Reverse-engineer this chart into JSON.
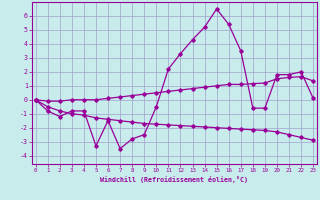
{
  "xlabel": "Windchill (Refroidissement éolien,°C)",
  "background_color": "#c8ecec",
  "grid_color": "#a0a0cc",
  "line_color": "#990099",
  "x_ticks": [
    0,
    1,
    2,
    3,
    4,
    5,
    6,
    7,
    8,
    9,
    10,
    11,
    12,
    13,
    14,
    15,
    16,
    17,
    18,
    19,
    20,
    21,
    22,
    23
  ],
  "y_ticks": [
    -4,
    -3,
    -2,
    -1,
    0,
    1,
    2,
    3,
    4,
    5,
    6
  ],
  "xlim": [
    -0.3,
    23.3
  ],
  "ylim": [
    -4.6,
    7.0
  ],
  "line1_x": [
    0,
    1,
    2,
    3,
    4,
    5,
    6,
    7,
    8,
    9,
    10,
    11,
    12,
    13,
    14,
    15,
    16,
    17,
    18,
    19,
    20,
    21,
    22,
    23
  ],
  "line1_y": [
    0.0,
    -0.8,
    -1.2,
    -0.8,
    -0.8,
    -3.3,
    -1.5,
    -3.5,
    -2.8,
    -2.5,
    -0.5,
    2.2,
    3.3,
    4.3,
    5.2,
    6.5,
    5.4,
    3.5,
    -0.6,
    -0.6,
    1.8,
    1.8,
    2.0,
    0.1
  ],
  "line2_x": [
    0,
    1,
    2,
    3,
    4,
    5,
    6,
    7,
    8,
    9,
    10,
    11,
    12,
    13,
    14,
    15,
    16,
    17,
    18,
    19,
    20,
    21,
    22,
    23
  ],
  "line2_y": [
    0.0,
    -0.5,
    -0.8,
    -1.0,
    -1.1,
    -1.3,
    -1.4,
    -1.5,
    -1.6,
    -1.7,
    -1.75,
    -1.8,
    -1.85,
    -1.9,
    -1.95,
    -2.0,
    -2.05,
    -2.1,
    -2.15,
    -2.2,
    -2.3,
    -2.5,
    -2.7,
    -2.9
  ],
  "line3_x": [
    0,
    1,
    2,
    3,
    4,
    5,
    6,
    7,
    8,
    9,
    10,
    11,
    12,
    13,
    14,
    15,
    16,
    17,
    18,
    19,
    20,
    21,
    22,
    23
  ],
  "line3_y": [
    0.0,
    -0.1,
    -0.1,
    -0.0,
    0.0,
    0.0,
    0.1,
    0.2,
    0.3,
    0.4,
    0.5,
    0.6,
    0.7,
    0.8,
    0.9,
    1.0,
    1.1,
    1.1,
    1.15,
    1.2,
    1.5,
    1.6,
    1.65,
    1.35
  ]
}
